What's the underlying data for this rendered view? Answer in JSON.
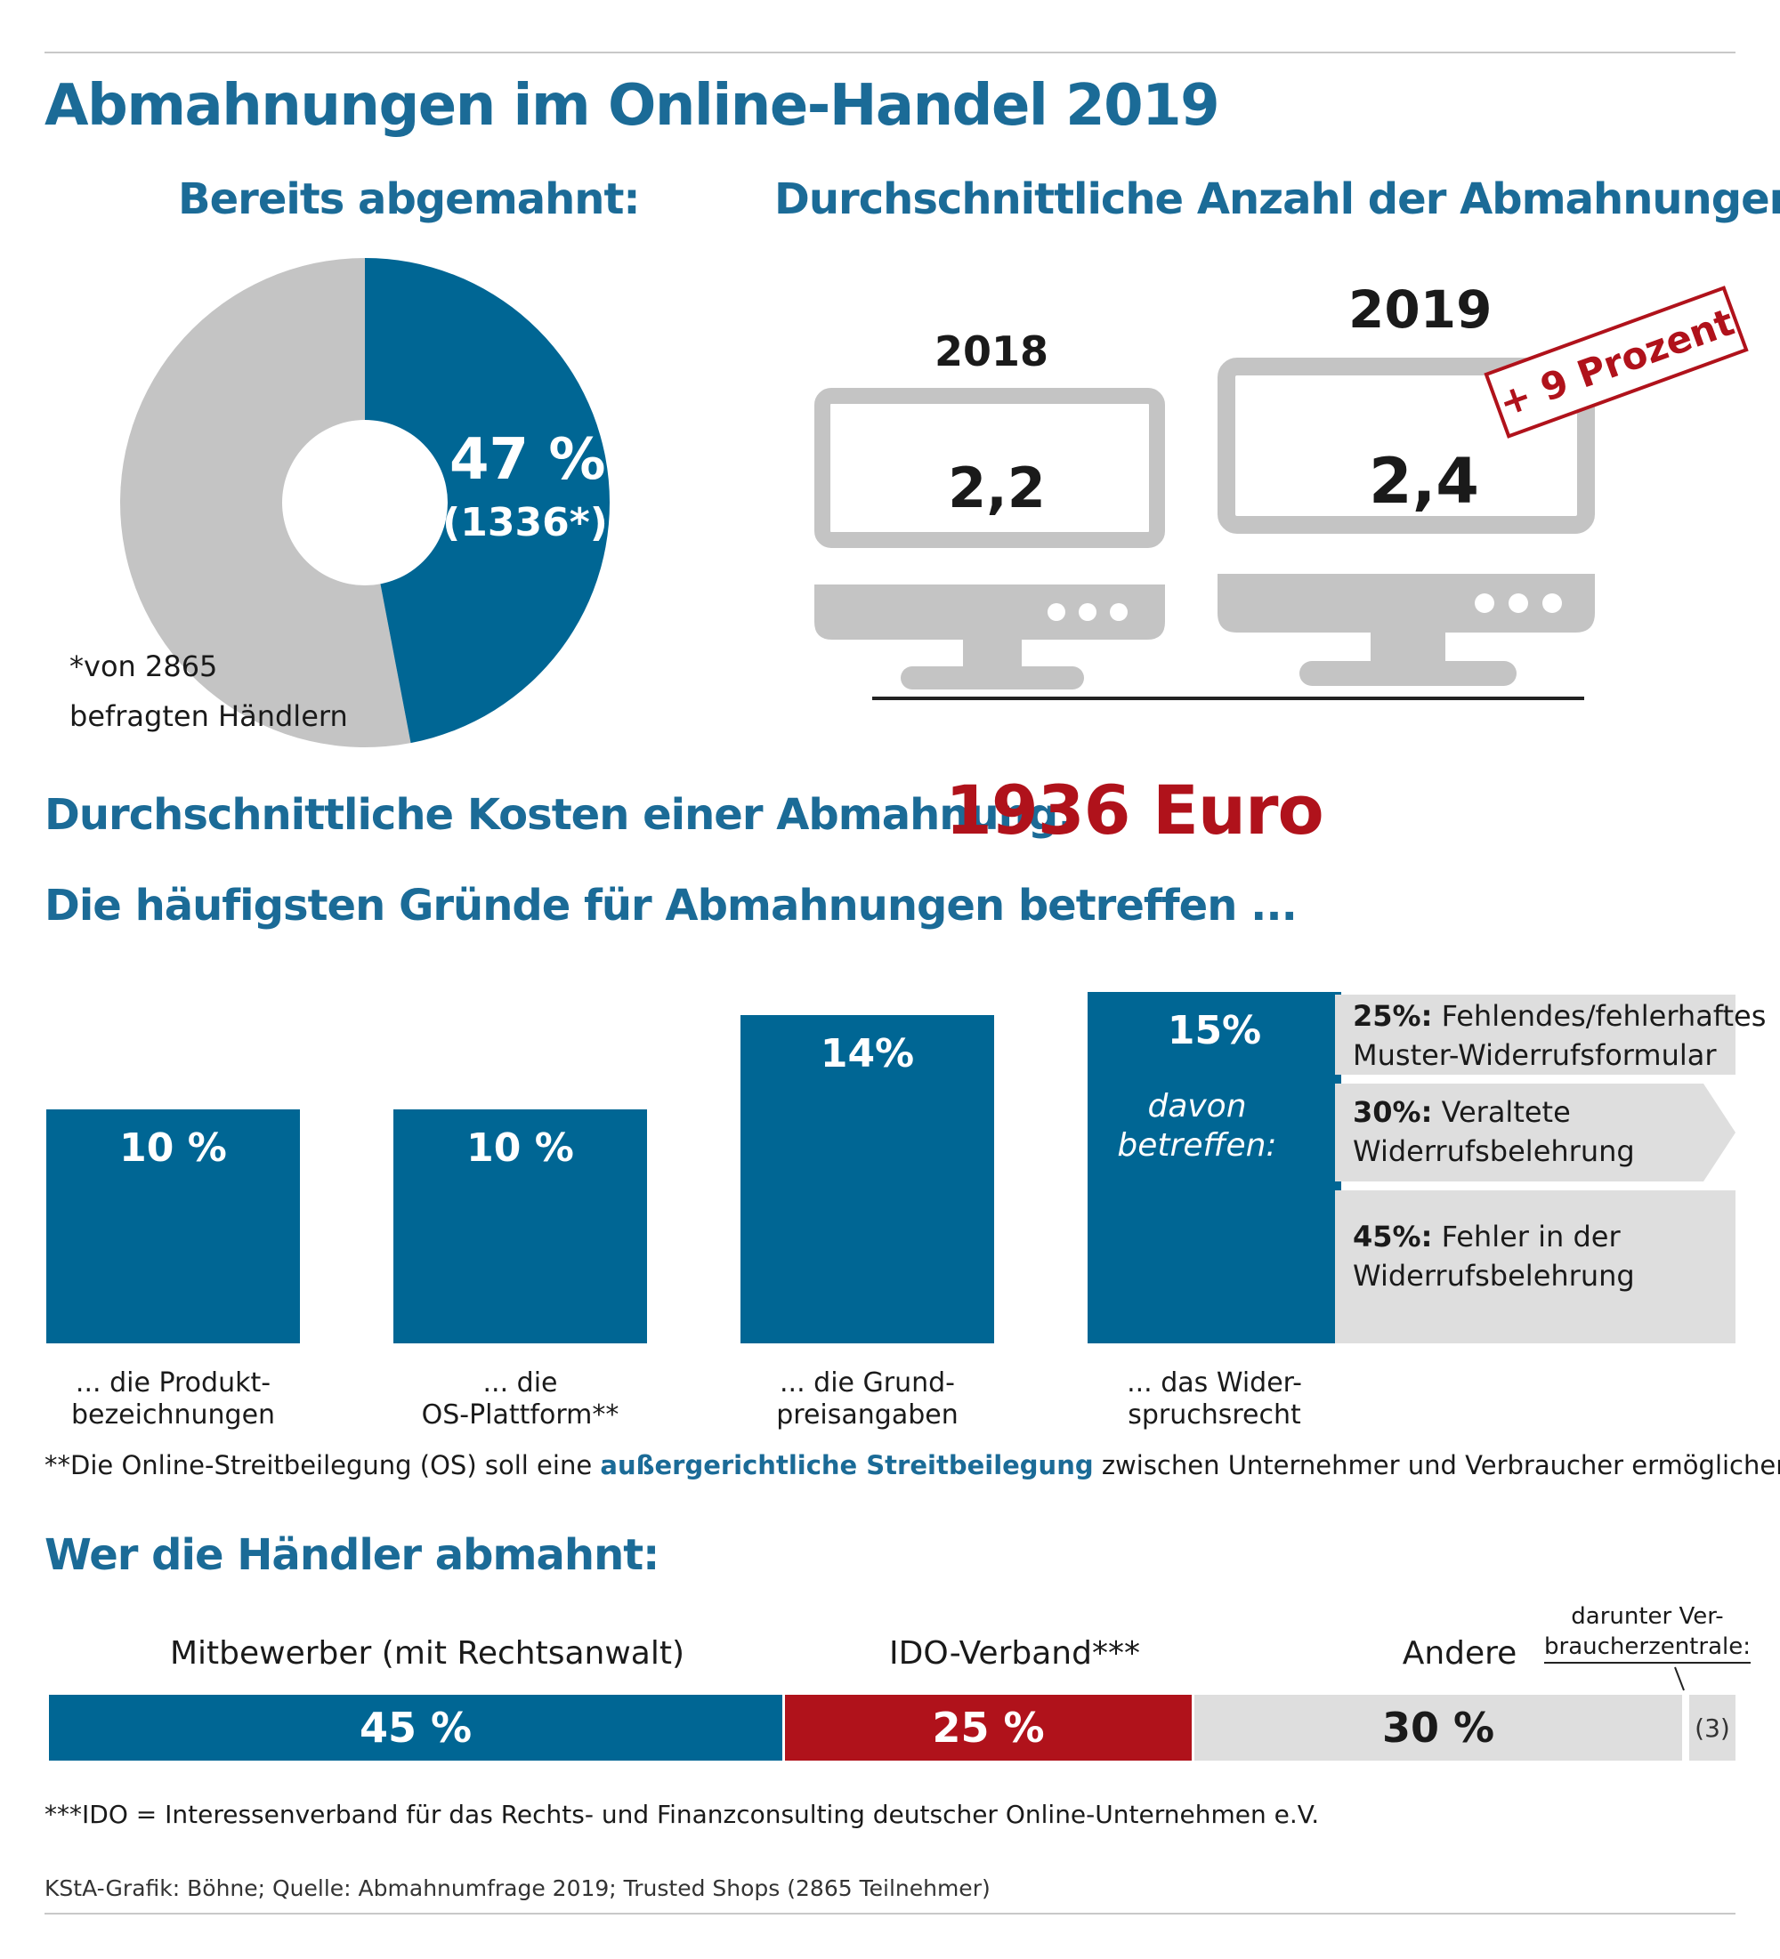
{
  "title": "Abmahnungen im Online-Handel 2019",
  "section_already": {
    "heading": "Bereits abgemahnt:",
    "percent_label": "47 %",
    "count_label": "(1336*)",
    "footnote_line1": "*von 2865",
    "footnote_line2": "befragten Händlern"
  },
  "section_count": {
    "heading": "Durchschnittliche Anzahl der Abmahnungen:",
    "year_2018": "2018",
    "value_2018": "2,2",
    "year_2019": "2019",
    "value_2019": "2,4",
    "stamp": "+ 9 Prozent"
  },
  "costs": {
    "label": "Durchschnittliche Kosten einer Abmahnung:",
    "value": "1936 Euro"
  },
  "reasons": {
    "heading": "Die häufigsten Gründe für Abmahnungen betreffen ...",
    "davon_line1": "davon",
    "davon_line2": "betreffen:",
    "split": [
      {
        "pct": "25%:",
        "line1": "Fehlendes/fehlerhaftes",
        "line2": "Muster-Widerrufsformular"
      },
      {
        "pct": "30%:",
        "line1": "Veraltete",
        "line2": "Widerrufsbelehrung"
      },
      {
        "pct": "45%:",
        "line1": "Fehler in der",
        "line2": "Widerrufsbelehrung"
      }
    ],
    "footnote_prefix": "**Die Online-Streitbeilegung (OS) soll eine ",
    "footnote_highlight": "außergerichtliche Streitbeilegung",
    "footnote_suffix": " zwischen Unternehmer und Verbraucher ermöglichen"
  },
  "who": {
    "heading": "Wer die Händler abmahnt:",
    "seg1_label": "Mitbewerber (mit Rechtsanwalt)",
    "seg1_value": "45 %",
    "seg2_label": "IDO-Verband***",
    "seg2_value": "25 %",
    "seg3_label": "Andere",
    "seg3_value": "30 %",
    "sub_label_line1": "darunter Ver-",
    "sub_label_line2": "braucherzentrale:",
    "sub_value": "(3)",
    "footnote": "***IDO = Interessenverband für das Rechts- und Finanzconsulting deutscher Online-Unternehmen e.V."
  },
  "source": "KStA-Grafik: Böhne; Quelle: Abmahnumfrage 2019; Trusted Shops (2865 Teilnehmer)",
  "colors": {
    "blue": "#006694",
    "heading_blue": "#1b6b97",
    "red": "#b0121b",
    "grey": "#c4c4c4",
    "light_grey": "#dedede"
  },
  "chart_data": [
    {
      "type": "pie",
      "title": "Bereits abgemahnt:",
      "slices": [
        {
          "label": "47 % (1336*)",
          "value": 47,
          "color": "#006694"
        },
        {
          "label": "",
          "value": 53,
          "color": "#c4c4c4"
        }
      ]
    },
    {
      "type": "bar",
      "title": "Durchschnittliche Anzahl der Abmahnungen:",
      "categories": [
        "2018",
        "2019"
      ],
      "values": [
        2.2,
        2.4
      ]
    },
    {
      "type": "bar",
      "title": "Die häufigsten Gründe für Abmahnungen betreffen ...",
      "categories": [
        "... die Produkt-bezeichnungen",
        "... die OS-Plattform**",
        "... die Grund-preisangaben",
        "... das Wider-spruchsrecht"
      ],
      "category_lines": [
        [
          "... die Produkt-",
          "bezeichnungen"
        ],
        [
          "... die",
          "OS-Plattform**"
        ],
        [
          "... die Grund-",
          "preisangaben"
        ],
        [
          "... das Wider-",
          "spruchsrecht"
        ]
      ],
      "values": [
        10,
        10,
        14,
        15
      ],
      "value_labels": [
        "10 %",
        "10 %",
        "14%",
        "15%"
      ],
      "ylim": [
        0,
        15
      ]
    },
    {
      "type": "bar",
      "title": "Wer die Händler abmahnt:",
      "categories": [
        "Mitbewerber (mit Rechtsanwalt)",
        "IDO-Verband***",
        "Andere"
      ],
      "values": [
        45,
        25,
        30
      ],
      "colors": [
        "#006694",
        "#b0121b",
        "#dedede"
      ]
    }
  ]
}
